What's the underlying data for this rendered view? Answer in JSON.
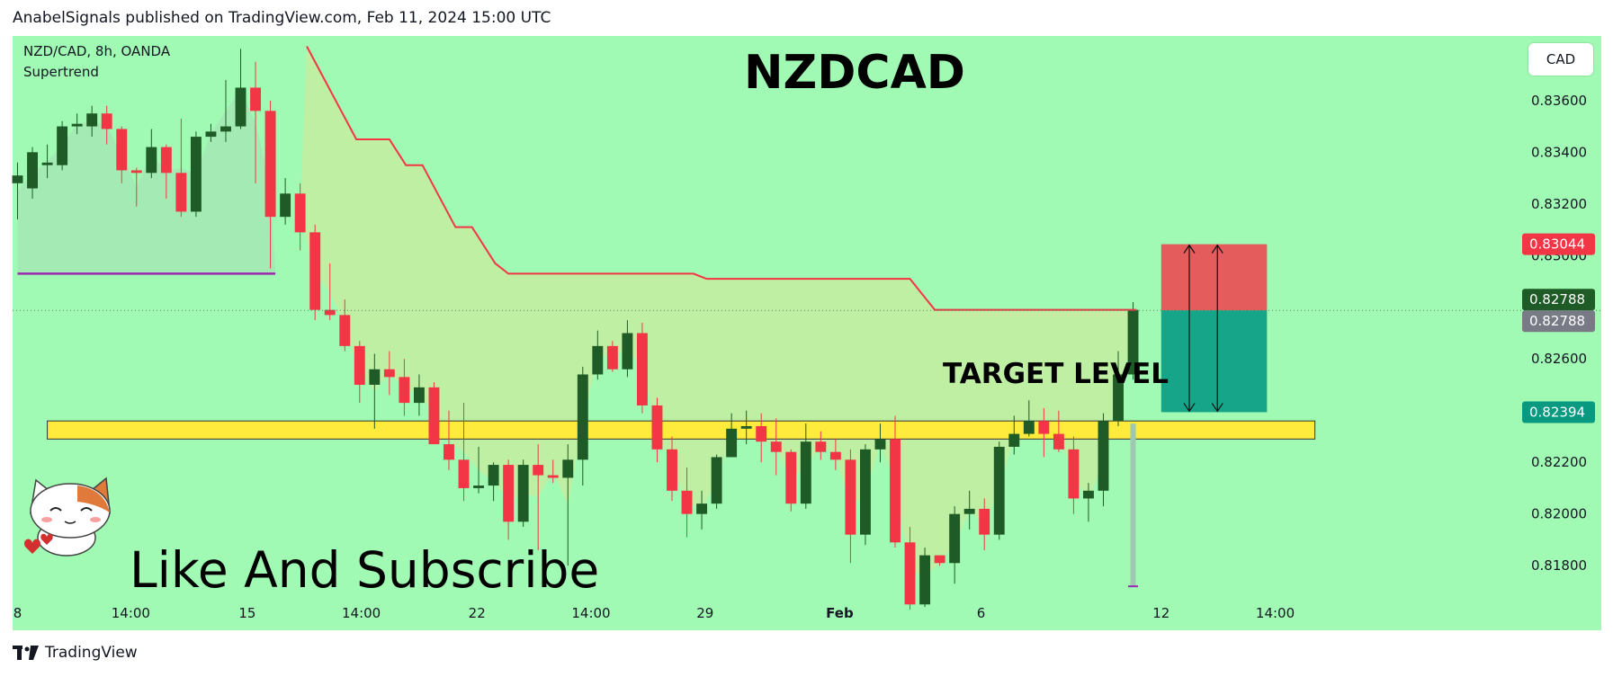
{
  "header": {
    "published_text": "AnabelSignals published on TradingView.com, Feb 11, 2024 15:00 UTC"
  },
  "footer": {
    "brand": "TradingView",
    "logo_icon": "tradingview-logo-icon"
  },
  "currency_button": "CAD",
  "overlay": {
    "subscribe_text": "Like And Subscribe",
    "mascot_icon": "cat-mascot-icon"
  },
  "chart_data": {
    "type": "candlestick",
    "title": "NZDCAD",
    "symbol_info": "NZD/CAD, 8h, OANDA",
    "indicator": "Supertrend",
    "y_ticks": [
      "0.83600",
      "0.83400",
      "0.83200",
      "0.83000",
      "0.82600",
      "0.82200",
      "0.82000",
      "0.81800"
    ],
    "x_ticks": [
      {
        "label": "8",
        "x": 0.0
      },
      {
        "label": "14:00",
        "x": 6.85
      },
      {
        "label": "15",
        "x": 13.9
      },
      {
        "label": "14:00",
        "x": 20.8
      },
      {
        "label": "22",
        "x": 27.8
      },
      {
        "label": "14:00",
        "x": 34.7
      },
      {
        "label": "29",
        "x": 41.6
      },
      {
        "label": "Feb",
        "x": 49.75
      },
      {
        "label": "6",
        "x": 58.3
      },
      {
        "label": "12",
        "x": 69.2
      },
      {
        "label": "14:00",
        "x": 76.1
      }
    ],
    "ylim": [
      0.8155,
      0.8385
    ],
    "xlim": [
      -0.3,
      79.5
    ],
    "price_labels": [
      {
        "value": "0.83044",
        "color": "#f23645"
      },
      {
        "value": "0.82788",
        "color": "#1e5b26"
      },
      {
        "value": "0.82788",
        "color": "#787b86"
      },
      {
        "value": "0.82394",
        "color": "#089981"
      }
    ],
    "current_price": 0.82788,
    "target": {
      "label": "TARGET LEVEL",
      "low": 0.8229,
      "high": 0.8236,
      "x_start": 1.8,
      "x_end": 78.5
    },
    "position": {
      "x_start": 69.2,
      "x_end": 75.6,
      "stop": 0.83044,
      "entry": 0.82788,
      "target": 0.82394
    },
    "old_supertrend_line": {
      "value": 0.8293,
      "x_start": 0,
      "x_end": 15.6
    },
    "supertrend": [
      [
        17.5,
        0.8381
      ],
      [
        20.5,
        0.8345
      ],
      [
        22.5,
        0.8345
      ],
      [
        23.5,
        0.8335
      ],
      [
        24.5,
        0.8335
      ],
      [
        26.5,
        0.8311
      ],
      [
        27.5,
        0.8311
      ],
      [
        28.9,
        0.8297
      ],
      [
        29.7,
        0.8293
      ],
      [
        40.9,
        0.8293
      ],
      [
        41.7,
        0.8291
      ],
      [
        54.0,
        0.8291
      ],
      [
        55.5,
        0.8279
      ],
      [
        67.7,
        0.8279
      ]
    ],
    "supertrend_colors": {
      "line": "#f23645",
      "fill_bear": "rgba(212,232,150,0.6)",
      "fill_bull": "rgba(168,220,180,0.55)"
    },
    "candles": [
      [
        0.0,
        0.8328,
        0.8331,
        0.8314,
        0.8336
      ],
      [
        0.9,
        0.8326,
        0.834,
        0.8322,
        0.8342
      ],
      [
        1.8,
        0.8335,
        0.8336,
        0.833,
        0.8343
      ],
      [
        2.7,
        0.8335,
        0.835,
        0.8333,
        0.8352
      ],
      [
        3.6,
        0.835,
        0.8351,
        0.8347,
        0.8355
      ],
      [
        4.5,
        0.835,
        0.8355,
        0.8346,
        0.8358
      ],
      [
        5.4,
        0.8355,
        0.8349,
        0.8343,
        0.8358
      ],
      [
        6.3,
        0.8349,
        0.8333,
        0.8328,
        0.835
      ],
      [
        7.2,
        0.8333,
        0.8332,
        0.8319,
        0.8334
      ],
      [
        8.1,
        0.8332,
        0.8342,
        0.833,
        0.8349
      ],
      [
        9.0,
        0.8342,
        0.8332,
        0.8322,
        0.8343
      ],
      [
        9.9,
        0.8332,
        0.8317,
        0.8315,
        0.8353
      ],
      [
        10.8,
        0.8317,
        0.8346,
        0.8315,
        0.8348
      ],
      [
        11.7,
        0.8346,
        0.8348,
        0.8344,
        0.8351
      ],
      [
        12.6,
        0.8348,
        0.835,
        0.8344,
        0.8368
      ],
      [
        13.5,
        0.835,
        0.8365,
        0.8349,
        0.838
      ],
      [
        14.4,
        0.8365,
        0.8356,
        0.8328,
        0.8375
      ],
      [
        15.3,
        0.8356,
        0.8315,
        0.8295,
        0.836
      ],
      [
        16.2,
        0.8315,
        0.8324,
        0.8312,
        0.833
      ],
      [
        17.1,
        0.8324,
        0.8309,
        0.8302,
        0.8328
      ],
      [
        18.0,
        0.8309,
        0.8279,
        0.8275,
        0.8312
      ],
      [
        18.9,
        0.8279,
        0.8277,
        0.8275,
        0.8297
      ],
      [
        19.8,
        0.8277,
        0.8265,
        0.8263,
        0.8283
      ],
      [
        20.7,
        0.8265,
        0.825,
        0.8243,
        0.8267
      ],
      [
        21.6,
        0.825,
        0.8256,
        0.8233,
        0.8262
      ],
      [
        22.5,
        0.8256,
        0.8253,
        0.8246,
        0.8263
      ],
      [
        23.4,
        0.8253,
        0.8243,
        0.8238,
        0.826
      ],
      [
        24.3,
        0.8243,
        0.8249,
        0.8238,
        0.8254
      ],
      [
        25.2,
        0.8249,
        0.8227,
        0.8227,
        0.8251
      ],
      [
        26.1,
        0.8227,
        0.8221,
        0.8217,
        0.824
      ],
      [
        27.0,
        0.8221,
        0.821,
        0.8205,
        0.8243
      ],
      [
        27.9,
        0.821,
        0.8211,
        0.8208,
        0.8226
      ],
      [
        28.8,
        0.8211,
        0.8219,
        0.8205,
        0.822
      ],
      [
        29.7,
        0.8219,
        0.8197,
        0.819,
        0.8221
      ],
      [
        30.6,
        0.8197,
        0.8219,
        0.8195,
        0.8221
      ],
      [
        31.5,
        0.8219,
        0.8215,
        0.8186,
        0.8227
      ],
      [
        32.4,
        0.8215,
        0.8214,
        0.8212,
        0.8221
      ],
      [
        33.3,
        0.8214,
        0.8221,
        0.818,
        0.8227
      ],
      [
        34.2,
        0.8221,
        0.8254,
        0.8211,
        0.8257
      ],
      [
        35.1,
        0.8254,
        0.8265,
        0.8252,
        0.8271
      ],
      [
        36.0,
        0.8265,
        0.8256,
        0.8255,
        0.8267
      ],
      [
        36.9,
        0.8256,
        0.827,
        0.8253,
        0.8275
      ],
      [
        37.8,
        0.827,
        0.8242,
        0.8239,
        0.8274
      ],
      [
        38.7,
        0.8242,
        0.8225,
        0.822,
        0.8245
      ],
      [
        39.6,
        0.8225,
        0.8209,
        0.8205,
        0.823
      ],
      [
        40.5,
        0.8209,
        0.82,
        0.8191,
        0.8218
      ],
      [
        41.4,
        0.82,
        0.8204,
        0.8194,
        0.8209
      ],
      [
        42.3,
        0.8204,
        0.8222,
        0.8202,
        0.8223
      ],
      [
        43.2,
        0.8222,
        0.8233,
        0.8222,
        0.8239
      ],
      [
        44.1,
        0.8233,
        0.8234,
        0.8227,
        0.824
      ],
      [
        45.0,
        0.8234,
        0.8228,
        0.822,
        0.8239
      ],
      [
        45.9,
        0.8228,
        0.8224,
        0.8215,
        0.8237
      ],
      [
        46.8,
        0.8224,
        0.8204,
        0.8201,
        0.8225
      ],
      [
        47.7,
        0.8204,
        0.8228,
        0.8202,
        0.8235
      ],
      [
        48.6,
        0.8228,
        0.8224,
        0.8221,
        0.8232
      ],
      [
        49.5,
        0.8224,
        0.8221,
        0.8217,
        0.8229
      ],
      [
        50.4,
        0.8221,
        0.8192,
        0.8181,
        0.8225
      ],
      [
        51.3,
        0.8192,
        0.8225,
        0.8188,
        0.8227
      ],
      [
        52.2,
        0.8225,
        0.8229,
        0.822,
        0.8235
      ],
      [
        53.1,
        0.8229,
        0.8189,
        0.8187,
        0.8238
      ],
      [
        54.0,
        0.8189,
        0.8165,
        0.8163,
        0.8195
      ],
      [
        54.9,
        0.8165,
        0.8184,
        0.8164,
        0.8187
      ],
      [
        55.8,
        0.8184,
        0.8181,
        0.818,
        0.8183
      ],
      [
        56.7,
        0.8181,
        0.82,
        0.8173,
        0.8203
      ],
      [
        57.6,
        0.82,
        0.8202,
        0.8194,
        0.8209
      ],
      [
        58.5,
        0.8202,
        0.8192,
        0.8186,
        0.8206
      ],
      [
        59.4,
        0.8192,
        0.8226,
        0.819,
        0.8228
      ],
      [
        60.3,
        0.8226,
        0.8231,
        0.8223,
        0.8238
      ],
      [
        61.2,
        0.8231,
        0.8236,
        0.823,
        0.8244
      ],
      [
        62.1,
        0.8236,
        0.8231,
        0.8222,
        0.8241
      ],
      [
        63.0,
        0.8231,
        0.8225,
        0.8224,
        0.824
      ],
      [
        63.9,
        0.8225,
        0.8206,
        0.82,
        0.823
      ],
      [
        64.8,
        0.8206,
        0.8209,
        0.8197,
        0.8212
      ],
      [
        65.7,
        0.8209,
        0.8236,
        0.8203,
        0.8239
      ],
      [
        66.6,
        0.8236,
        0.8254,
        0.8234,
        0.8263
      ],
      [
        67.5,
        0.8254,
        0.8279,
        0.8252,
        0.8282
      ]
    ],
    "colors": {
      "up": "#1e5b26",
      "down": "#f23645",
      "background": "#a1fab4",
      "target_fill": "#ffeb3b"
    }
  }
}
